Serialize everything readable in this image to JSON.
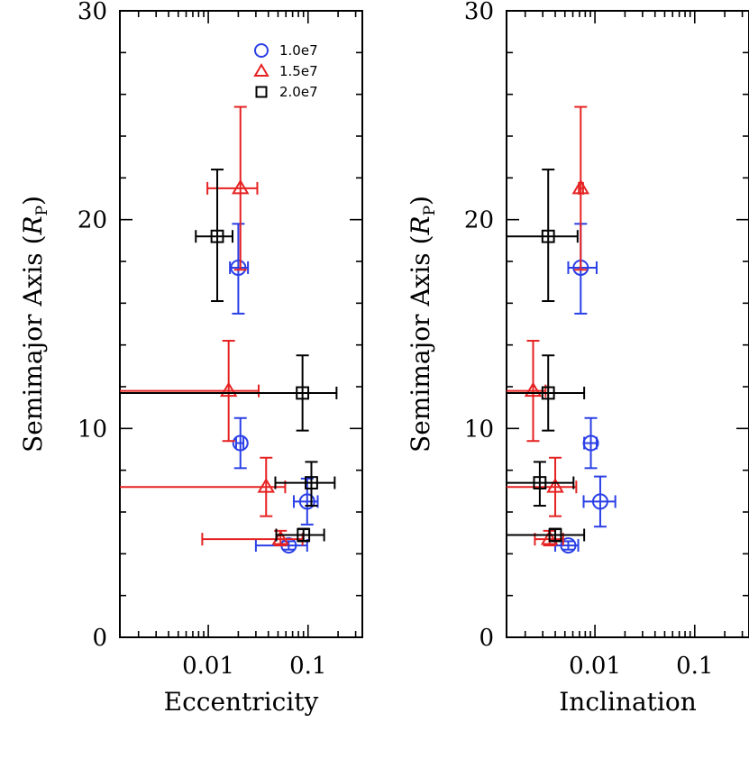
{
  "colors": {
    "s1": "#2a3fe6",
    "s2": "#e62222",
    "s3": "#000000"
  },
  "chart_data": [
    {
      "type": "scatter",
      "panel": "left",
      "xlabel": "Eccentricity",
      "ylabel_main": "Semimajor Axis (",
      "ylabel_var": "R",
      "ylabel_sub": "P",
      "ylabel_close": ")",
      "xscale": "log",
      "xlim": [
        0.0013,
        0.35
      ],
      "ylim": [
        0,
        30
      ],
      "xticks_labeled": [
        {
          "v": 0.01,
          "label": "0.01"
        },
        {
          "v": 0.1,
          "label": "0.1"
        }
      ],
      "yticks_labeled": [
        {
          "v": 0,
          "label": "0"
        },
        {
          "v": 10,
          "label": "10"
        },
        {
          "v": 20,
          "label": "20"
        },
        {
          "v": 30,
          "label": "30"
        }
      ],
      "legend": {
        "placement": "top-right",
        "entries": [
          {
            "series": 0,
            "label": "1.0e7"
          },
          {
            "series": 1,
            "label": "1.5e7"
          },
          {
            "series": 2,
            "label": "2.0e7"
          }
        ]
      },
      "series": [
        {
          "name": "1.0e7",
          "marker": "circle",
          "color_key": "s1",
          "points": [
            {
              "x": 0.02,
              "xerr": [
                0.0165,
                0.025
              ],
              "y": 17.7,
              "yerr": [
                15.5,
                19.8
              ]
            },
            {
              "x": 0.021,
              "xerr": [
                0.019,
                0.0225
              ],
              "y": 9.3,
              "yerr": [
                8.1,
                10.5
              ]
            },
            {
              "x": 0.098,
              "xerr": [
                0.072,
                0.125
              ],
              "y": 6.5,
              "yerr": [
                5.4,
                7.6
              ]
            },
            {
              "x": 0.064,
              "xerr": [
                0.03,
                0.098
              ],
              "y": 4.4,
              "yerr": [
                4.2,
                4.6
              ]
            }
          ]
        },
        {
          "name": "1.5e7",
          "marker": "triangle",
          "color_key": "s2",
          "points": [
            {
              "x": 0.021,
              "xerr": [
                0.0098,
                0.031
              ],
              "y": 21.5,
              "yerr": [
                17.6,
                25.4
              ]
            },
            {
              "x": 0.016,
              "xerr": [
                0.0013,
                0.032
              ],
              "y": 11.8,
              "yerr": [
                9.4,
                14.2
              ]
            },
            {
              "x": 0.038,
              "xerr": [
                0.0013,
                0.059
              ],
              "y": 7.2,
              "yerr": [
                5.8,
                8.6
              ]
            },
            {
              "x": 0.053,
              "xerr": [
                0.0087,
                0.088
              ],
              "y": 4.7,
              "yerr": [
                4.4,
                5.1
              ]
            }
          ]
        },
        {
          "name": "2.0e7",
          "marker": "square",
          "color_key": "s3",
          "points": [
            {
              "x": 0.0123,
              "xerr": [
                0.0075,
                0.0175
              ],
              "y": 19.2,
              "yerr": [
                16.1,
                22.4
              ]
            },
            {
              "x": 0.088,
              "xerr": [
                0.0013,
                0.193
              ],
              "y": 11.7,
              "yerr": [
                9.9,
                13.5
              ]
            },
            {
              "x": 0.108,
              "xerr": [
                0.047,
                0.185
              ],
              "y": 7.4,
              "yerr": [
                6.3,
                8.4
              ]
            },
            {
              "x": 0.09,
              "xerr": [
                0.048,
                0.145
              ],
              "y": 4.9,
              "yerr": [
                4.6,
                5.2
              ]
            }
          ]
        }
      ]
    },
    {
      "type": "scatter",
      "panel": "right",
      "xlabel": "Inclination",
      "ylabel_main": "Semimajor Axis (",
      "ylabel_var": "R",
      "ylabel_sub": "P",
      "ylabel_close": ")",
      "xscale": "log",
      "xlim": [
        0.0013,
        0.35
      ],
      "ylim": [
        0,
        30
      ],
      "xticks_labeled": [
        {
          "v": 0.01,
          "label": "0.01"
        },
        {
          "v": 0.1,
          "label": "0.1"
        }
      ],
      "yticks_labeled": [
        {
          "v": 0,
          "label": "0"
        },
        {
          "v": 10,
          "label": "10"
        },
        {
          "v": 20,
          "label": "20"
        },
        {
          "v": 30,
          "label": "30"
        }
      ],
      "series": [
        {
          "name": "1.0e7",
          "marker": "circle",
          "color_key": "s1",
          "points": [
            {
              "x": 0.0072,
              "xerr": [
                0.0054,
                0.0104
              ],
              "y": 17.7,
              "yerr": [
                15.5,
                19.8
              ]
            },
            {
              "x": 0.0091,
              "xerr": [
                0.0078,
                0.0104
              ],
              "y": 9.3,
              "yerr": [
                8.1,
                10.5
              ]
            },
            {
              "x": 0.0113,
              "xerr": [
                0.0077,
                0.016
              ],
              "y": 6.5,
              "yerr": [
                5.3,
                7.7
              ]
            },
            {
              "x": 0.0054,
              "xerr": [
                0.004,
                0.0068
              ],
              "y": 4.4,
              "yerr": [
                4.2,
                4.6
              ]
            }
          ]
        },
        {
          "name": "1.5e7",
          "marker": "triangle",
          "color_key": "s2",
          "points": [
            {
              "x": 0.0072,
              "xerr": [
                0.0069,
                0.0076
              ],
              "y": 21.5,
              "yerr": [
                17.6,
                25.4
              ]
            },
            {
              "x": 0.0024,
              "xerr": [
                0.0013,
                0.0032
              ],
              "y": 11.8,
              "yerr": [
                9.4,
                14.2
              ]
            },
            {
              "x": 0.004,
              "xerr": [
                0.0013,
                0.0065
              ],
              "y": 7.2,
              "yerr": [
                5.8,
                8.6
              ]
            },
            {
              "x": 0.0035,
              "xerr": [
                0.0025,
                0.0048
              ],
              "y": 4.7,
              "yerr": [
                4.4,
                5.1
              ]
            }
          ]
        },
        {
          "name": "2.0e7",
          "marker": "square",
          "color_key": "s3",
          "points": [
            {
              "x": 0.0034,
              "xerr": [
                0.0013,
                0.0067
              ],
              "y": 19.2,
              "yerr": [
                16.1,
                22.4
              ]
            },
            {
              "x": 0.0034,
              "xerr": [
                0.0013,
                0.0078
              ],
              "y": 11.7,
              "yerr": [
                9.9,
                13.5
              ]
            },
            {
              "x": 0.0028,
              "xerr": [
                0.0013,
                0.0061
              ],
              "y": 7.4,
              "yerr": [
                6.3,
                8.4
              ]
            },
            {
              "x": 0.004,
              "xerr": [
                0.0013,
                0.0078
              ],
              "y": 4.9,
              "yerr": [
                4.6,
                5.2
              ]
            }
          ]
        }
      ]
    }
  ]
}
